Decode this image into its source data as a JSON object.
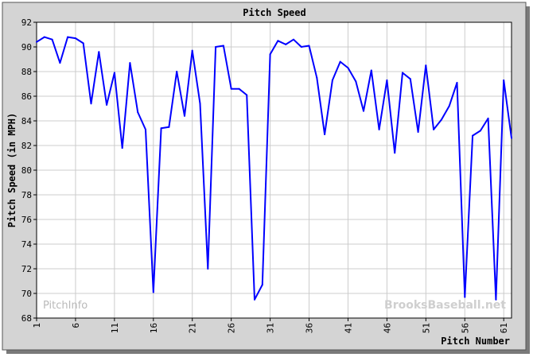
{
  "chart_data": {
    "type": "line",
    "title": "Pitch Speed",
    "xlabel": "Pitch Number",
    "ylabel": "Pitch Speed (in MPH)",
    "xlim": [
      1,
      62
    ],
    "ylim": [
      68,
      92
    ],
    "x_ticks": [
      "1",
      "6",
      "11",
      "16",
      "21",
      "26",
      "31",
      "36",
      "41",
      "46",
      "51",
      "56",
      "61"
    ],
    "y_ticks": [
      "68",
      "70",
      "72",
      "74",
      "76",
      "78",
      "80",
      "82",
      "84",
      "86",
      "88",
      "90",
      "92"
    ],
    "grid": true,
    "line_color": "#0000ff",
    "series": [
      {
        "x": [
          1,
          2,
          3,
          4,
          5,
          6,
          7,
          8,
          9,
          10,
          11,
          12,
          13,
          14,
          15,
          16,
          17,
          18,
          19,
          20,
          21,
          22,
          23,
          24,
          25,
          26,
          27,
          28,
          29,
          30,
          31,
          32,
          33,
          34,
          35,
          36,
          37,
          38,
          39,
          40,
          41,
          42,
          43,
          44,
          45,
          46,
          47,
          48,
          49,
          50,
          51,
          52,
          53,
          54,
          55,
          56,
          57,
          58,
          59,
          60,
          61,
          62
        ],
        "values": [
          90.4,
          90.8,
          90.6,
          88.7,
          90.8,
          90.7,
          90.3,
          85.4,
          89.6,
          85.3,
          87.9,
          81.8,
          88.7,
          84.7,
          83.3,
          70.1,
          83.4,
          83.5,
          88.0,
          84.4,
          89.7,
          85.4,
          72.0,
          90.0,
          90.1,
          86.6,
          86.6,
          86.1,
          69.5,
          70.7,
          89.4,
          90.5,
          90.2,
          90.6,
          90.0,
          90.1,
          87.5,
          82.9,
          87.3,
          88.8,
          88.3,
          87.2,
          84.8,
          88.1,
          83.3,
          87.3,
          81.4,
          87.9,
          87.4,
          83.1,
          88.5,
          83.3,
          84.1,
          85.2,
          87.1,
          69.7,
          82.8,
          83.2,
          84.2,
          69.5,
          87.3,
          82.6
        ]
      }
    ]
  },
  "watermarks": {
    "left": "PitchInfo",
    "right": "BrooksBaseball.net"
  }
}
